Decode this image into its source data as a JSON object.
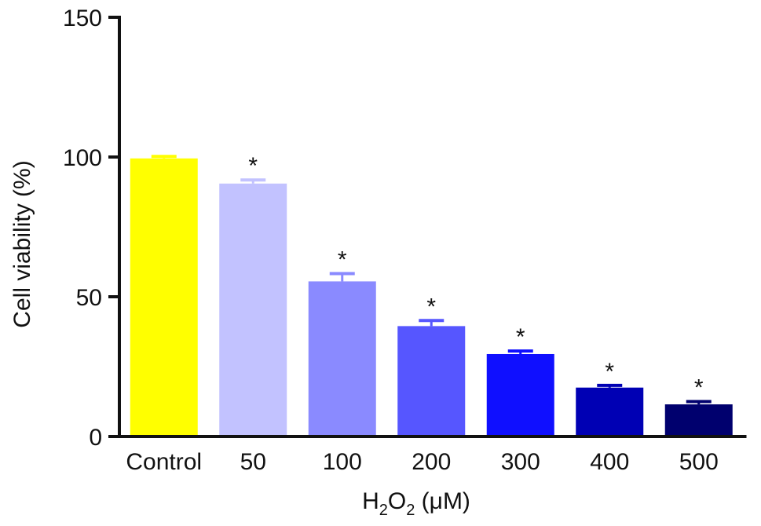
{
  "chart_data": {
    "type": "bar",
    "categories": [
      "Control",
      "50",
      "100",
      "200",
      "300",
      "400",
      "500"
    ],
    "values": [
      99.5,
      90.5,
      55.5,
      39.5,
      29.5,
      17.5,
      11.5
    ],
    "error_upper": [
      100.2,
      91.8,
      58.3,
      41.5,
      30.6,
      18.3,
      12.5
    ],
    "significance": [
      "",
      "*",
      "*",
      "*",
      "*",
      "*",
      "*"
    ],
    "colors": [
      "#ffff00",
      "#c2c2ff",
      "#8a8aff",
      "#5656ff",
      "#0f0fff",
      "#0000b4",
      "#00006e"
    ],
    "ylabel": "Cell viability (%)",
    "xlabel": {
      "main": "H",
      "sub1": "2",
      "mid": "O",
      "sub2": "2",
      "unit": " (μM)"
    },
    "ylim": [
      0,
      150
    ],
    "yticks": [
      0,
      50,
      100,
      150
    ],
    "grid": false
  }
}
